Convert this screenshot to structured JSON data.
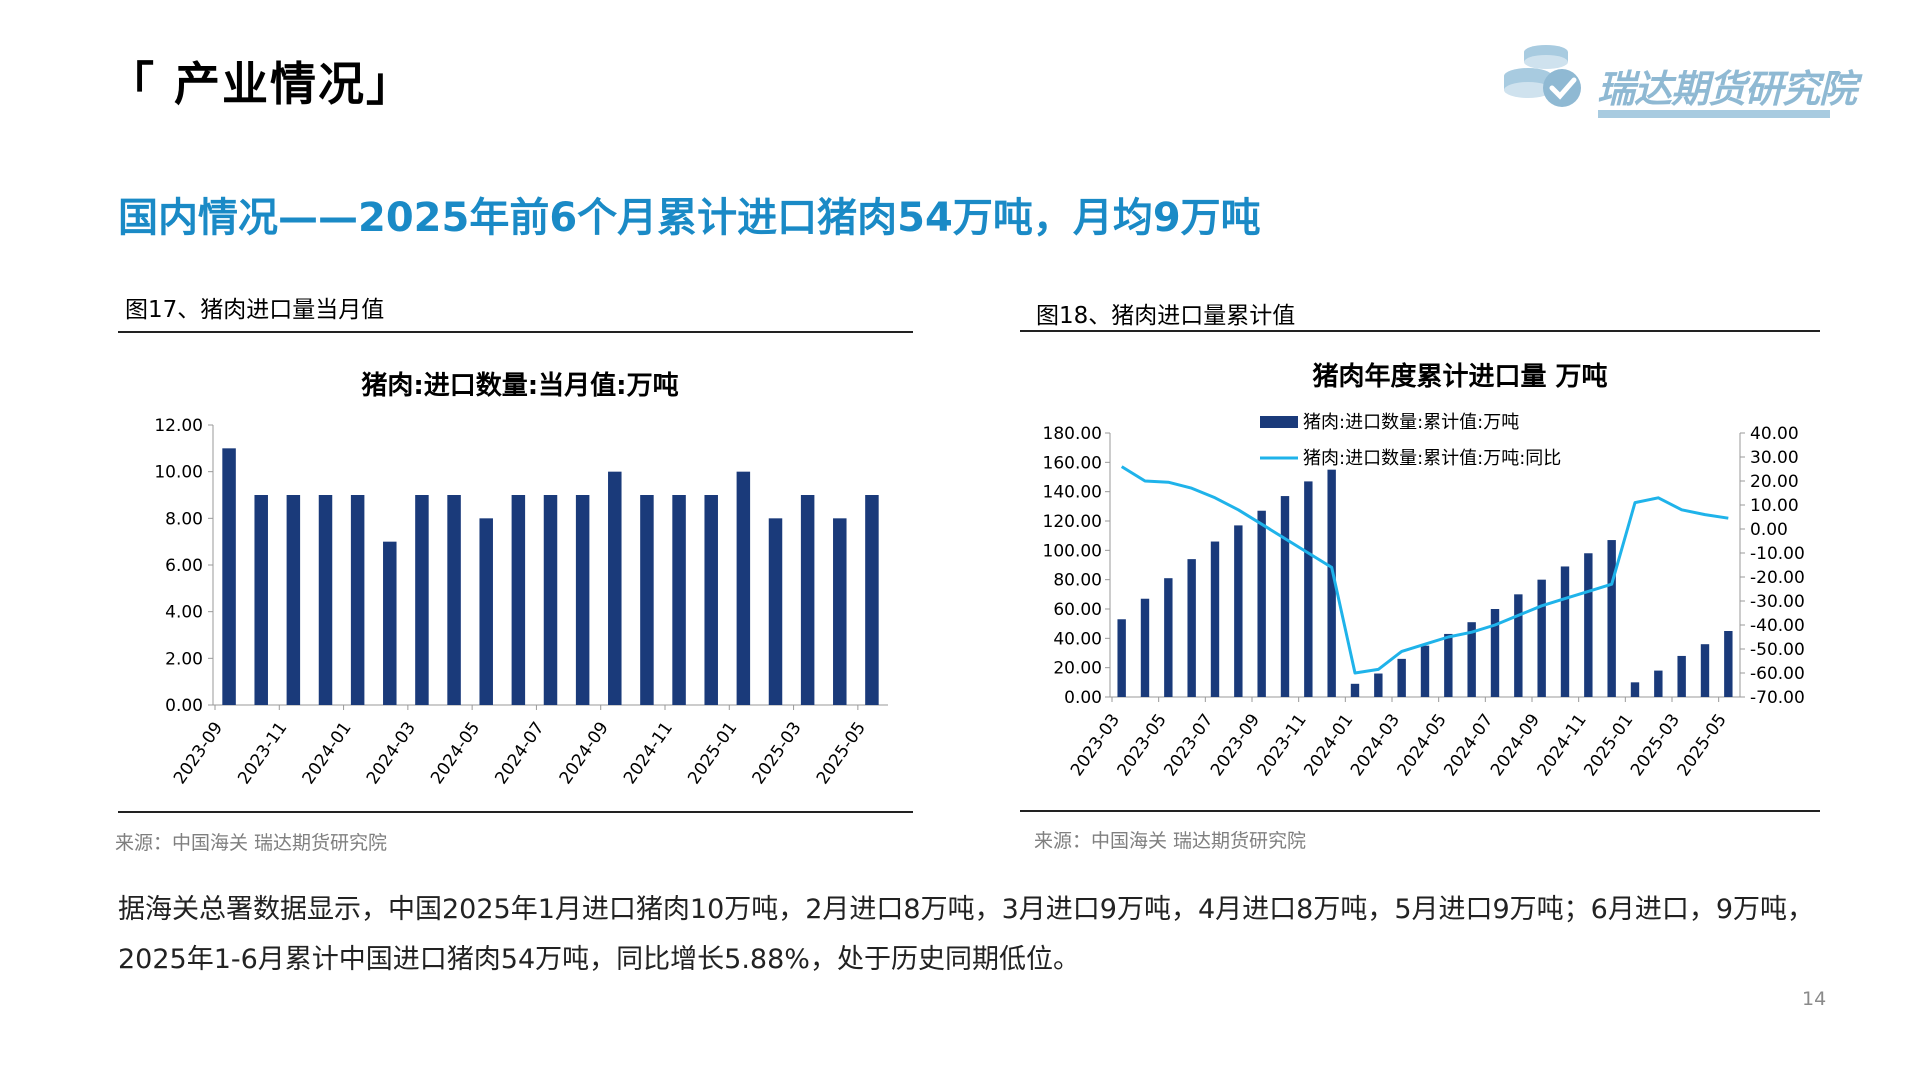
{
  "section": {
    "title": "「 产业情况」"
  },
  "logo": {
    "text": "瑞达期货研究院",
    "icon": "coins-check-icon"
  },
  "headline": "国内情况——2025年前6个月累计进口猪肉54万吨，月均9万吨",
  "figure17": {
    "caption": "图17、猪肉进口量当月值",
    "source": "来源：中国海关   瑞达期货研究院"
  },
  "figure18": {
    "caption": "图18、猪肉进口量累计值",
    "source": "来源：中国海关   瑞达期货研究院"
  },
  "chart_data": [
    {
      "type": "bar",
      "title": "猪肉:进口数量:当月值:万吨",
      "categories": [
        "2023-09",
        "2023-10",
        "2023-11",
        "2023-12",
        "2024-01",
        "2024-02",
        "2024-03",
        "2024-04",
        "2024-05",
        "2024-06",
        "2024-07",
        "2024-08",
        "2024-09",
        "2024-10",
        "2024-11",
        "2024-12",
        "2025-01",
        "2025-02",
        "2025-03",
        "2025-04",
        "2025-05"
      ],
      "tick_labels": [
        "2023-09",
        "2023-11",
        "2024-01",
        "2024-03",
        "2024-05",
        "2024-07",
        "2024-09",
        "2024-11",
        "2025-01",
        "2025-03",
        "2025-05"
      ],
      "values": [
        11,
        9,
        9,
        9,
        9,
        7,
        9,
        9,
        8,
        9,
        9,
        9,
        10,
        9,
        9,
        9,
        10,
        8,
        9,
        8,
        9
      ],
      "ylim": [
        0,
        12
      ],
      "yticks": [
        "0.00",
        "2.00",
        "4.00",
        "6.00",
        "8.00",
        "10.00",
        "12.00"
      ],
      "color": "#1a3a7a"
    },
    {
      "type": "bar+line",
      "title": "猪肉年度累计进口量    万吨",
      "categories": [
        "2023-03",
        "2023-04",
        "2023-05",
        "2023-06",
        "2023-07",
        "2023-08",
        "2023-09",
        "2023-10",
        "2023-11",
        "2023-12",
        "2024-01",
        "2024-02",
        "2024-03",
        "2024-04",
        "2024-05",
        "2024-06",
        "2024-07",
        "2024-08",
        "2024-09",
        "2024-10",
        "2024-11",
        "2024-12",
        "2025-01",
        "2025-02",
        "2025-03",
        "2025-04",
        "2025-05"
      ],
      "tick_labels": [
        "2023-03",
        "2023-05",
        "2023-07",
        "2023-09",
        "2023-11",
        "2024-01",
        "2024-03",
        "2024-05",
        "2024-07",
        "2024-09",
        "2024-11",
        "2025-01",
        "2025-03",
        "2025-05"
      ],
      "series": [
        {
          "name": "猪肉:进口数量:累计值:万吨",
          "kind": "bar",
          "axis": "left",
          "color": "#1a3a7a",
          "values": [
            53,
            67,
            81,
            94,
            106,
            117,
            127,
            137,
            147,
            155,
            9,
            16,
            26,
            35,
            43,
            51,
            60,
            70,
            80,
            89,
            98,
            107,
            10,
            18,
            28,
            36,
            45
          ]
        },
        {
          "name": "猪肉:进口数量:累计值:万吨:同比",
          "kind": "line",
          "axis": "right",
          "color": "#1fb3ea",
          "values": [
            26,
            20,
            19.5,
            17,
            13,
            8,
            2,
            -4,
            -10,
            -16,
            -60,
            -58.5,
            -51,
            -48,
            -45,
            -43,
            -40,
            -36,
            -32,
            -29,
            -26,
            -23,
            11,
            13,
            8,
            6,
            4.5
          ]
        }
      ],
      "ylim_left": [
        0,
        180
      ],
      "yticks_left": [
        "0.00",
        "20.00",
        "40.00",
        "60.00",
        "80.00",
        "100.00",
        "120.00",
        "140.00",
        "160.00",
        "180.00"
      ],
      "ylim_right": [
        -70,
        40
      ],
      "yticks_right": [
        "-70.00",
        "-60.00",
        "-50.00",
        "-40.00",
        "-30.00",
        "-20.00",
        "-10.00",
        "0.00",
        "10.00",
        "20.00",
        "30.00",
        "40.00"
      ],
      "legend_position": "top-center"
    }
  ],
  "body_text": "据海关总署数据显示，中国2025年1月进口猪肉10万吨，2月进口8万吨，3月进口9万吨，4月进口8万吨，5月进口9万吨；6月进口，9万吨， 2025年1-6月累计中国进口猪肉54万吨，同比增长5.88%，处于历史同期低位。",
  "page_number": "14"
}
